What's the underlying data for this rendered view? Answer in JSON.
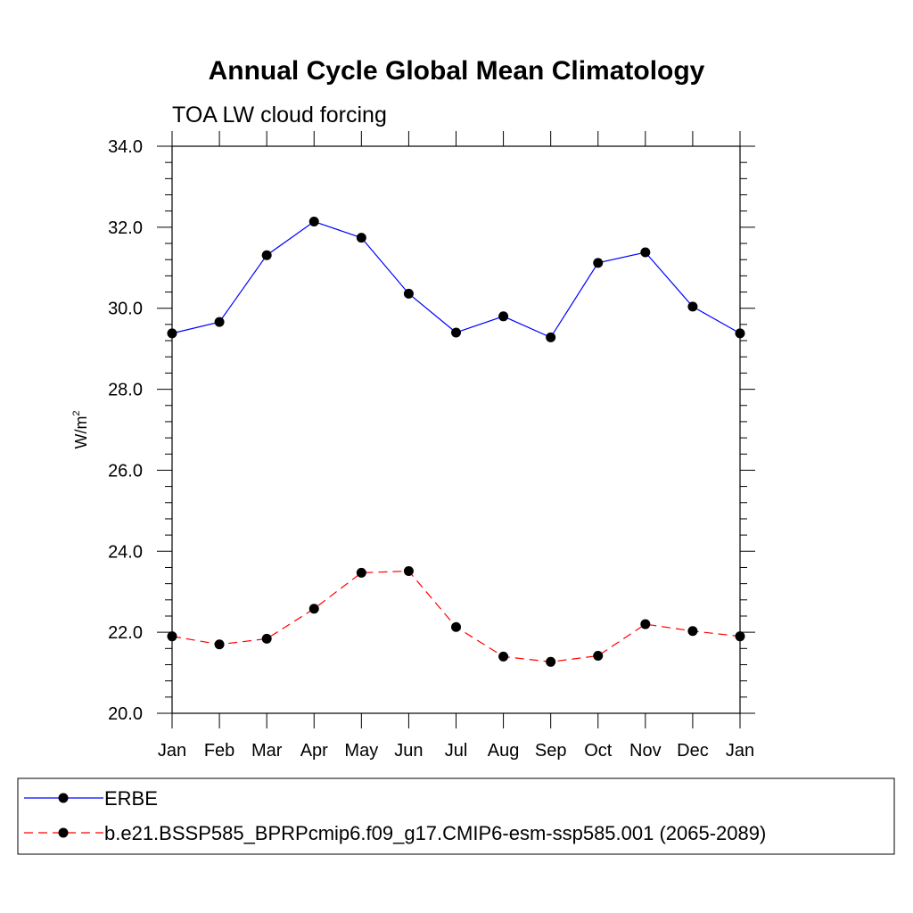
{
  "chart_data": {
    "type": "line",
    "title": "Annual Cycle Global Mean Climatology",
    "subtitle": "TOA LW cloud forcing",
    "ylabel": "W/m",
    "ylabel_superscript": "2",
    "xlabel": "",
    "categories": [
      "Jan",
      "Feb",
      "Mar",
      "Apr",
      "May",
      "Jun",
      "Jul",
      "Aug",
      "Sep",
      "Oct",
      "Nov",
      "Dec",
      "Jan"
    ],
    "ylim": [
      20.0,
      34.0
    ],
    "y_ticks": [
      "20.0",
      "22.0",
      "24.0",
      "26.0",
      "28.0",
      "30.0",
      "32.0",
      "34.0"
    ],
    "grid": false,
    "legend_position": "bottom",
    "series": [
      {
        "name": "ERBE",
        "color": "#0000ff",
        "dash": "solid",
        "marker": "filled-circle",
        "values": [
          29.38,
          29.66,
          31.31,
          32.14,
          31.74,
          30.36,
          29.4,
          29.8,
          29.28,
          31.12,
          31.38,
          30.04,
          29.38
        ]
      },
      {
        "name": "b.e21.BSSP585_BPRPcmip6.f09_g17.CMIP6-esm-ssp585.001 (2065-2089)",
        "color": "#ff0000",
        "dash": "dashed",
        "marker": "filled-circle",
        "values": [
          21.9,
          21.7,
          21.84,
          22.58,
          23.47,
          23.51,
          22.13,
          21.4,
          21.27,
          21.42,
          22.2,
          22.03,
          21.9
        ]
      }
    ]
  }
}
